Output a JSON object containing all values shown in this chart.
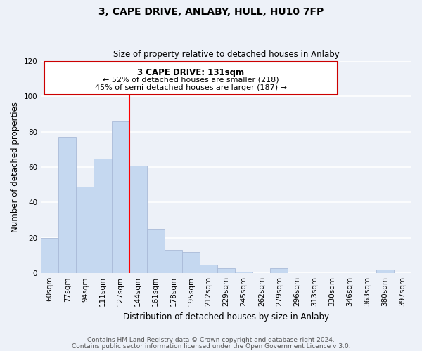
{
  "title": "3, CAPE DRIVE, ANLABY, HULL, HU10 7FP",
  "subtitle": "Size of property relative to detached houses in Anlaby",
  "xlabel": "Distribution of detached houses by size in Anlaby",
  "ylabel": "Number of detached properties",
  "bar_labels": [
    "60sqm",
    "77sqm",
    "94sqm",
    "111sqm",
    "127sqm",
    "144sqm",
    "161sqm",
    "178sqm",
    "195sqm",
    "212sqm",
    "229sqm",
    "245sqm",
    "262sqm",
    "279sqm",
    "296sqm",
    "313sqm",
    "330sqm",
    "346sqm",
    "363sqm",
    "380sqm",
    "397sqm"
  ],
  "bar_values": [
    20,
    77,
    49,
    65,
    86,
    61,
    25,
    13,
    12,
    5,
    3,
    1,
    0,
    3,
    0,
    0,
    0,
    0,
    0,
    2,
    0
  ],
  "bar_color": "#c5d8f0",
  "bar_edge_color": "#aabbd8",
  "vline_x": 4.5,
  "vline_color": "red",
  "ylim": [
    0,
    120
  ],
  "yticks": [
    0,
    20,
    40,
    60,
    80,
    100,
    120
  ],
  "annotation_title": "3 CAPE DRIVE: 131sqm",
  "annotation_line1": "← 52% of detached houses are smaller (218)",
  "annotation_line2": "45% of semi-detached houses are larger (187) →",
  "annotation_box_color": "white",
  "annotation_box_edge": "#cc0000",
  "footer_line1": "Contains HM Land Registry data © Crown copyright and database right 2024.",
  "footer_line2": "Contains public sector information licensed under the Open Government Licence v 3.0.",
  "background_color": "#edf1f8",
  "grid_color": "white",
  "title_fontsize": 10,
  "subtitle_fontsize": 8.5,
  "axis_label_fontsize": 8.5,
  "tick_fontsize": 7.5,
  "footer_fontsize": 6.5
}
